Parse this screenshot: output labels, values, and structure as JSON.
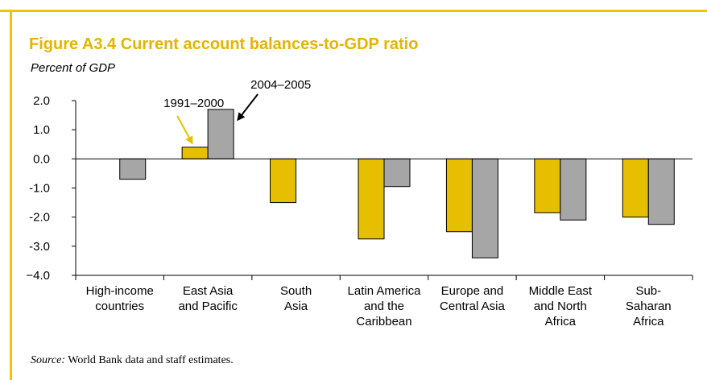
{
  "figure": {
    "title": "Figure A3.4  Current account balances-to-GDP ratio",
    "unit_label": "Percent of GDP",
    "source_label": "Source:",
    "source_text": " World Bank data and staff estimates."
  },
  "colors": {
    "frame": "#f2c200",
    "title": "#e6b400",
    "series_1991_2000": "#e6bf00",
    "series_2004_2005": "#a6a6a6"
  },
  "chart_data": {
    "type": "bar",
    "categories": [
      [
        "High-income",
        "countries"
      ],
      [
        "East Asia",
        "and Pacific"
      ],
      [
        "South",
        "Asia"
      ],
      [
        "Latin America",
        "and the",
        "Caribbean"
      ],
      [
        "Europe and",
        "Central Asia"
      ],
      [
        "Middle East",
        "and North",
        "Africa"
      ],
      [
        "Sub-",
        "Saharan",
        "Africa"
      ]
    ],
    "series": [
      {
        "name": "1991–2000",
        "values": [
          null,
          0.4,
          -1.5,
          -2.75,
          -2.5,
          -1.85,
          -2.0
        ]
      },
      {
        "name": "2004–2005",
        "values": [
          -0.7,
          1.7,
          null,
          -0.95,
          -3.4,
          -2.1,
          -2.25
        ]
      }
    ],
    "yticks": [
      "2.0",
      "1.0",
      "0.0",
      "-1.0",
      "-2.0",
      "-3.0",
      "−4.0"
    ],
    "ylim": [
      -4,
      2
    ],
    "xlabel": "",
    "ylabel": "Percent of GDP",
    "grid": false,
    "legend": "arrow annotations near East Asia and Pacific bars"
  }
}
